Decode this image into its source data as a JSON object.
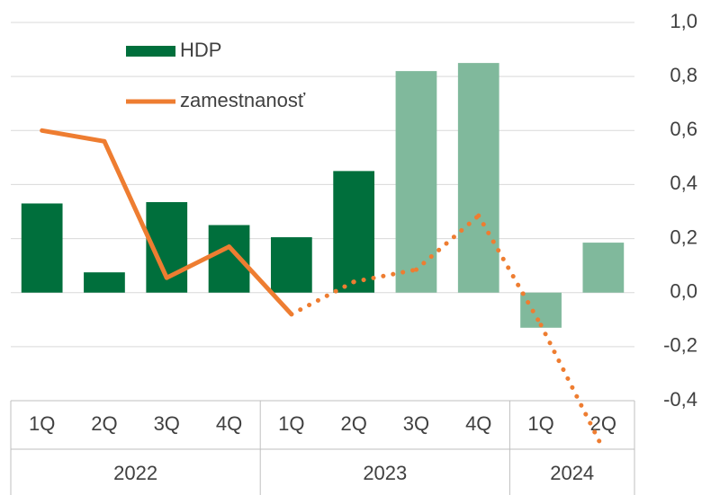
{
  "chart_data": {
    "type": "bar_line",
    "groups": [
      {
        "name": "2022",
        "categories": [
          "1Q",
          "2Q",
          "3Q",
          "4Q"
        ]
      },
      {
        "name": "2023",
        "categories": [
          "1Q",
          "2Q",
          "3Q",
          "4Q"
        ]
      },
      {
        "name": "2024",
        "categories": [
          "1Q",
          "2Q"
        ]
      }
    ],
    "series": [
      {
        "name": "HDP",
        "type": "bar",
        "values": [
          0.33,
          0.075,
          0.335,
          0.25,
          0.205,
          0.45,
          0.82,
          0.85,
          -0.13,
          0.185
        ],
        "colors": [
          "#006f3c",
          "#006f3c",
          "#006f3c",
          "#006f3c",
          "#006f3c",
          "#006f3c",
          "#80b99c",
          "#80b99c",
          "#80b99c",
          "#80b99c"
        ]
      },
      {
        "name": "zamestnanosť",
        "type": "line",
        "color": "#ee7d31",
        "values": [
          0.6,
          0.56,
          0.055,
          0.17,
          -0.08,
          0.04,
          0.085,
          0.285,
          -0.12,
          -0.58
        ],
        "styles": [
          "solid",
          "solid",
          "solid",
          "solid",
          "solid",
          "dotted",
          "dotted",
          "dotted",
          "dotted",
          "dotted"
        ]
      }
    ],
    "ylim": [
      -0.4,
      1.0
    ],
    "yticks": [
      {
        "value": -0.4,
        "label": "-0,4"
      },
      {
        "value": -0.2,
        "label": "-0,2"
      },
      {
        "value": 0,
        "label": "0,0"
      },
      {
        "value": 0.2,
        "label": "0,2"
      },
      {
        "value": 0.4,
        "label": "0,4"
      },
      {
        "value": 0.6,
        "label": "0,6"
      },
      {
        "value": 0.8,
        "label": "0,8"
      },
      {
        "value": 1.0,
        "label": "1,0"
      }
    ],
    "grid": true,
    "legend": "upper left",
    "y_axis_side": "right"
  }
}
